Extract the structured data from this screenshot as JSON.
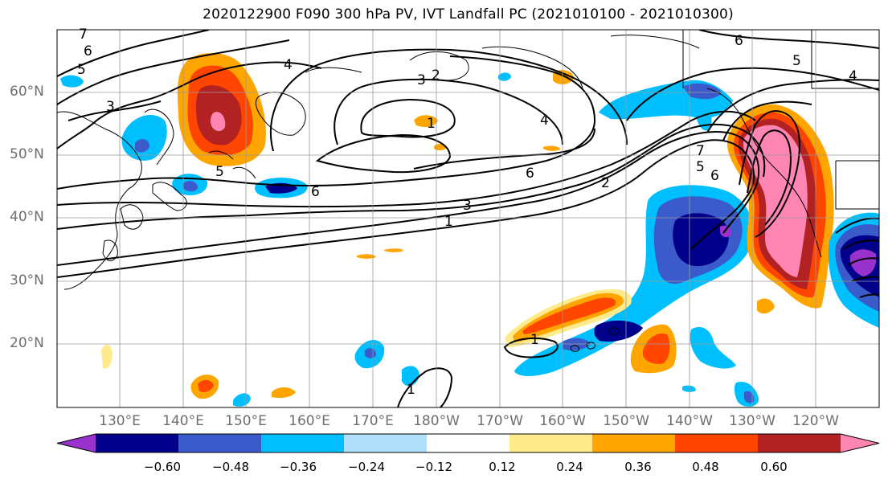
{
  "title": "2020122900 F090 300 hPa PV, IVT Landfall PC (2021010100 - 2021010300)",
  "lat_labels": [
    "60°N",
    "50°N",
    "40°N",
    "30°N",
    "20°N"
  ],
  "lon_labels": [
    "130°E",
    "140°E",
    "150°E",
    "160°E",
    "170°E",
    "180°W",
    "170°W",
    "160°W",
    "150°W",
    "140°W",
    "130°W",
    "120°W"
  ],
  "colorbar": {
    "ticks": [
      "−0.60",
      "−0.48",
      "−0.36",
      "−0.24",
      "−0.12",
      "0.12",
      "0.24",
      "0.36",
      "0.48",
      "0.60"
    ],
    "colors": [
      "#9932cc",
      "#00008b",
      "#3a5bc9",
      "#00bfff",
      "#b0e0fb",
      "#ffffff",
      "#ffeb8c",
      "#ffa500",
      "#ff4500",
      "#b22222",
      "#ff85b3"
    ]
  },
  "contour_labels": [
    "1",
    "2",
    "3",
    "4",
    "5",
    "6",
    "7"
  ]
}
